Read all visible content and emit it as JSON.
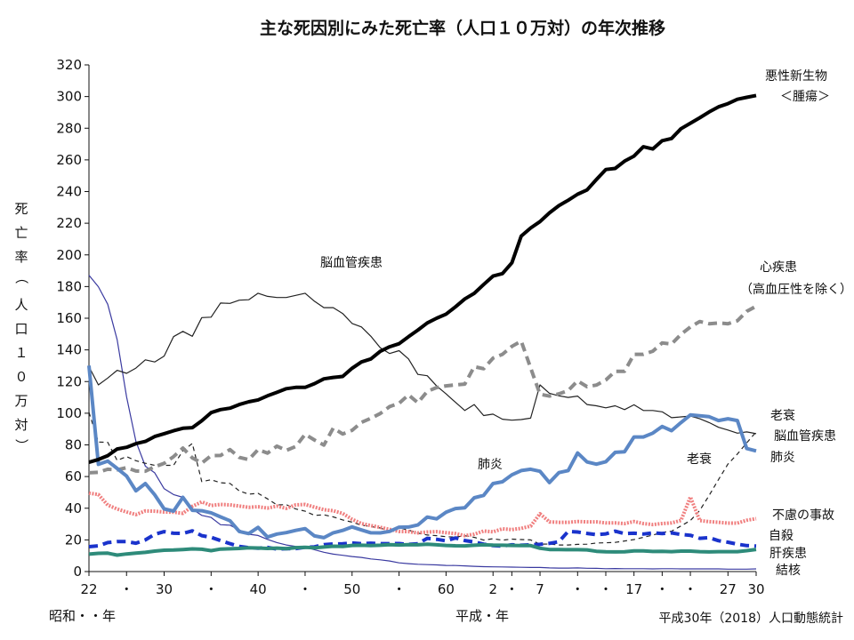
{
  "chart_data": {
    "type": "line",
    "title": "主な死因別にみた死亡率（人口１０万対）の年次推移",
    "ylabel": "死亡率（人口１０万対）",
    "ylim": [
      0,
      320
    ],
    "yticks": [
      0,
      20,
      40,
      60,
      80,
      100,
      120,
      140,
      160,
      180,
      200,
      220,
      240,
      260,
      280,
      300,
      320
    ],
    "x_tick_labels": [
      "22",
      "・",
      "30",
      "・",
      "40",
      "・",
      "50",
      "・",
      "60",
      "2",
      "・",
      "7",
      "・",
      "・",
      "17",
      "・",
      "・",
      "27",
      "30"
    ],
    "era_label_showa": "昭和・・年",
    "era_label_heisei": "平成・年",
    "source_note": "平成30年（2018）人口動態統計",
    "x": [
      1947,
      1948,
      1949,
      1950,
      1951,
      1952,
      1953,
      1954,
      1955,
      1956,
      1957,
      1958,
      1959,
      1960,
      1961,
      1962,
      1963,
      1964,
      1965,
      1966,
      1967,
      1968,
      1969,
      1970,
      1971,
      1972,
      1973,
      1974,
      1975,
      1976,
      1977,
      1978,
      1979,
      1980,
      1981,
      1982,
      1983,
      1984,
      1985,
      1986,
      1987,
      1988,
      1989,
      1990,
      1991,
      1992,
      1993,
      1994,
      1995,
      1996,
      1997,
      1998,
      1999,
      2000,
      2001,
      2002,
      2003,
      2004,
      2005,
      2006,
      2007,
      2008,
      2009,
      2010,
      2011,
      2012,
      2013,
      2014,
      2015,
      2016,
      2017,
      2018
    ],
    "series": [
      {
        "name": "悪性新生物",
        "color": "#000000",
        "style": "solid-thick",
        "values": [
          69.0,
          70.8,
          73.2,
          77.4,
          78.5,
          80.8,
          82.2,
          85.3,
          87.1,
          88.9,
          90.5,
          90.9,
          95.2,
          100.4,
          102.3,
          103.2,
          105.5,
          107.2,
          108.4,
          111.0,
          113.2,
          115.5,
          116.3,
          116.3,
          118.7,
          121.7,
          122.6,
          123.2,
          128.4,
          132.4,
          134.3,
          139.1,
          142.0,
          143.9,
          148.3,
          152.5,
          157.0,
          160.0,
          162.6,
          167.2,
          172.2,
          175.7,
          181.3,
          186.6,
          188.2,
          195.0,
          211.9,
          217.0,
          221.0,
          226.5,
          231.1,
          234.5,
          238.3,
          241.0,
          247.6,
          253.9,
          254.6,
          259.2,
          262.4,
          268.3,
          266.9,
          272.1,
          273.5,
          279.7,
          283.2,
          286.6,
          290.3,
          293.5,
          295.5,
          298.3,
          299.5,
          300.7
        ]
      },
      {
        "name": "心疾患\n（高血圧性を除く）",
        "color": "#8c8c8c",
        "style": "dashed-thick",
        "values": [
          62.4,
          62.7,
          64.6,
          64.2,
          65.6,
          63.5,
          63.4,
          66.2,
          68.3,
          72.6,
          78.0,
          71.8,
          68.5,
          73.2,
          73.3,
          77.0,
          72.1,
          70.7,
          77.0,
          74.8,
          79.2,
          76.5,
          79.0,
          86.7,
          83.1,
          79.9,
          90.6,
          86.9,
          89.2,
          94.2,
          96.8,
          99.8,
          104.2,
          106.2,
          111.6,
          106.6,
          113.8,
          116.2,
          117.3,
          117.9,
          118.4,
          129.4,
          128.1,
          134.8,
          137.2,
          142.2,
          145.6,
          128.6,
          112.0,
          110.8,
          112.2,
          114.3,
          120.4,
          116.8,
          117.8,
          121.0,
          126.5,
          126.5,
          137.2,
          137.2,
          139.2,
          144.4,
          143.7,
          149.8,
          154.5,
          157.9,
          156.5,
          157.0,
          156.5,
          158.4,
          164.3,
          167.6
        ]
      },
      {
        "name": "脳血管疾患",
        "color": "#222222",
        "style": "thin",
        "values": [
          129.4,
          117.9,
          122.2,
          127.1,
          125.2,
          128.5,
          133.7,
          132.4,
          136.1,
          148.4,
          151.7,
          148.6,
          160.4,
          160.7,
          169.6,
          169.4,
          171.4,
          171.7,
          175.8,
          173.8,
          173.1,
          173.1,
          174.4,
          175.8,
          170.7,
          166.7,
          166.7,
          163.0,
          156.7,
          154.5,
          148.6,
          141.3,
          137.7,
          139.5,
          134.3,
          124.5,
          123.7,
          117.2,
          112.2,
          106.9,
          101.7,
          105.5,
          98.5,
          99.4,
          96.2,
          95.6,
          96.0,
          96.9,
          117.9,
          112.6,
          111.0,
          110.0,
          110.8,
          105.5,
          104.7,
          103.4,
          104.7,
          102.3,
          105.3,
          101.7,
          101.7,
          100.9,
          97.2,
          97.7,
          98.2,
          96.5,
          94.1,
          91.1,
          89.4,
          87.4,
          88.2,
          87.1
        ]
      },
      {
        "name": "肺炎",
        "color": "#5b87c5",
        "style": "solid-thick",
        "values": [
          130.1,
          67.7,
          69.8,
          65.1,
          60.3,
          51.0,
          55.6,
          48.5,
          39.6,
          38.2,
          46.9,
          38.7,
          38.4,
          37.1,
          34.5,
          32.1,
          25.3,
          24.0,
          27.9,
          21.8,
          23.7,
          24.6,
          26.0,
          27.1,
          22.5,
          21.4,
          24.5,
          26.0,
          28.2,
          26.3,
          24.5,
          24.4,
          25.4,
          28.0,
          28.1,
          29.4,
          34.4,
          33.3,
          37.5,
          39.8,
          40.3,
          46.6,
          48.1,
          55.6,
          56.7,
          61.1,
          63.8,
          64.6,
          63.3,
          56.2,
          62.5,
          63.8,
          74.9,
          69.2,
          67.8,
          69.4,
          75.3,
          75.7,
          85.0,
          85.0,
          87.4,
          91.6,
          89.0,
          94.1,
          98.9,
          98.4,
          97.8,
          95.4,
          96.5,
          95.4,
          77.7,
          76.2
        ]
      },
      {
        "name": "老衰",
        "color": "#222222",
        "style": "dashed-thin",
        "values": [
          100.6,
          81.8,
          81.6,
          70.2,
          72.6,
          70.0,
          68.4,
          67.1,
          67.1,
          67.1,
          76.3,
          80.9,
          56.8,
          58.0,
          56.1,
          55.7,
          50.9,
          48.9,
          49.4,
          45.9,
          42.1,
          42.3,
          39.5,
          38.1,
          35.5,
          35.8,
          34.5,
          32.6,
          31.2,
          29.3,
          28.4,
          27.5,
          25.4,
          27.6,
          26.2,
          24.3,
          23.1,
          22.7,
          22.0,
          21.8,
          22.6,
          21.6,
          19.9,
          20.8,
          19.8,
          20.5,
          20.2,
          20.0,
          17.3,
          17.4,
          16.8,
          16.8,
          17.2,
          17.3,
          18.0,
          18.2,
          18.4,
          19.3,
          20.2,
          21.6,
          23.0,
          24.7,
          25.5,
          28.8,
          32.2,
          38.6,
          48.1,
          58.1,
          67.9,
          74.2,
          81.3,
          88.2
        ]
      },
      {
        "name": "不慮の事故",
        "color": "#f08080",
        "style": "dotted-thick",
        "values": [
          49.5,
          48.7,
          42.0,
          39.5,
          37.6,
          36.0,
          38.3,
          38.1,
          37.6,
          37.5,
          36.8,
          41.2,
          44.0,
          41.7,
          42.4,
          42.1,
          41.4,
          40.6,
          40.9,
          40.1,
          41.3,
          39.9,
          42.1,
          42.4,
          40.7,
          39.1,
          38.4,
          36.7,
          33.0,
          30.3,
          29.0,
          27.9,
          26.6,
          25.3,
          25.2,
          24.4,
          25.0,
          25.2,
          24.6,
          24.0,
          22.7,
          23.6,
          25.6,
          25.1,
          27.0,
          26.5,
          27.3,
          28.7,
          36.5,
          31.4,
          31.1,
          31.1,
          31.6,
          31.4,
          31.4,
          30.7,
          30.7,
          30.3,
          31.6,
          30.3,
          29.7,
          30.3,
          30.7,
          32.3,
          47.1,
          32.2,
          31.5,
          31.1,
          30.6,
          30.6,
          32.4,
          33.4
        ]
      },
      {
        "name": "自殺",
        "color": "#1a33cc",
        "style": "dashed-thick",
        "values": [
          15.7,
          16.2,
          18.3,
          18.9,
          18.9,
          17.9,
          20.0,
          23.5,
          25.2,
          24.2,
          24.1,
          25.7,
          22.7,
          21.6,
          19.6,
          17.6,
          15.9,
          15.1,
          14.7,
          15.2,
          14.2,
          14.5,
          14.5,
          15.3,
          15.6,
          17.0,
          17.4,
          17.5,
          18.0,
          17.6,
          17.9,
          17.6,
          17.6,
          17.7,
          17.2,
          17.5,
          21.0,
          20.4,
          19.4,
          21.2,
          19.6,
          18.7,
          17.3,
          16.4,
          16.1,
          16.9,
          16.6,
          16.9,
          17.2,
          17.8,
          18.8,
          25.4,
          25.0,
          24.1,
          23.3,
          23.8,
          25.5,
          24.0,
          24.2,
          23.7,
          24.4,
          24.0,
          24.4,
          23.4,
          22.9,
          21.0,
          21.4,
          19.5,
          18.5,
          17.3,
          16.4,
          16.1
        ]
      },
      {
        "name": "肝疾患",
        "color": "#2e8b7a",
        "style": "solid-thick",
        "values": [
          11.0,
          11.5,
          11.6,
          10.4,
          11.1,
          11.6,
          12.1,
          12.9,
          13.5,
          13.6,
          13.9,
          14.3,
          14.1,
          13.2,
          14.2,
          14.4,
          14.6,
          15.0,
          14.9,
          14.6,
          14.8,
          14.5,
          15.1,
          15.3,
          15.0,
          15.5,
          16.0,
          15.9,
          16.5,
          16.6,
          16.4,
          16.6,
          17.0,
          16.8,
          17.0,
          16.9,
          17.3,
          16.9,
          16.5,
          16.3,
          16.2,
          16.6,
          16.9,
          16.7,
          16.6,
          16.5,
          16.4,
          16.4,
          14.7,
          13.9,
          13.9,
          13.8,
          13.8,
          13.7,
          12.8,
          12.5,
          12.4,
          12.5,
          13.0,
          13.0,
          12.7,
          12.8,
          12.6,
          12.9,
          12.9,
          12.6,
          12.4,
          12.6,
          12.6,
          12.6,
          13.2,
          14.0
        ]
      },
      {
        "name": "結核",
        "color": "#3a3aa0",
        "style": "thin",
        "values": [
          187.2,
          179.9,
          168.8,
          146.4,
          110.3,
          82.2,
          66.5,
          62.4,
          52.3,
          48.6,
          46.9,
          39.4,
          35.5,
          34.2,
          29.6,
          29.3,
          26.3,
          23.6,
          22.8,
          20.3,
          18.3,
          16.8,
          15.9,
          15.4,
          13.8,
          12.2,
          11.0,
          10.3,
          9.5,
          8.9,
          8.0,
          7.4,
          6.7,
          5.5,
          5.0,
          4.6,
          4.4,
          4.2,
          3.9,
          3.8,
          3.6,
          3.3,
          3.1,
          3.0,
          2.9,
          2.8,
          2.7,
          2.6,
          2.6,
          2.3,
          2.2,
          2.2,
          2.3,
          2.1,
          2.0,
          1.8,
          1.9,
          1.8,
          1.8,
          1.8,
          1.7,
          1.8,
          1.8,
          1.7,
          1.7,
          1.7,
          1.7,
          1.7,
          1.5,
          1.5,
          1.5,
          1.7
        ]
      }
    ],
    "inline_labels": [
      {
        "text": "脳血管疾患"
      },
      {
        "text": "心疾患"
      },
      {
        "text": "（高血圧性を除く）"
      },
      {
        "text": "肺炎"
      },
      {
        "text": "老衰"
      }
    ],
    "right_labels": [
      {
        "text": "悪性新生物"
      },
      {
        "text": "＜腫瘍＞"
      },
      {
        "text": "老衰"
      },
      {
        "text": "脳血管疾患"
      },
      {
        "text": "肺炎"
      },
      {
        "text": "不慮の事故"
      },
      {
        "text": "自殺"
      },
      {
        "text": "肝疾患"
      },
      {
        "text": "結核"
      }
    ]
  }
}
